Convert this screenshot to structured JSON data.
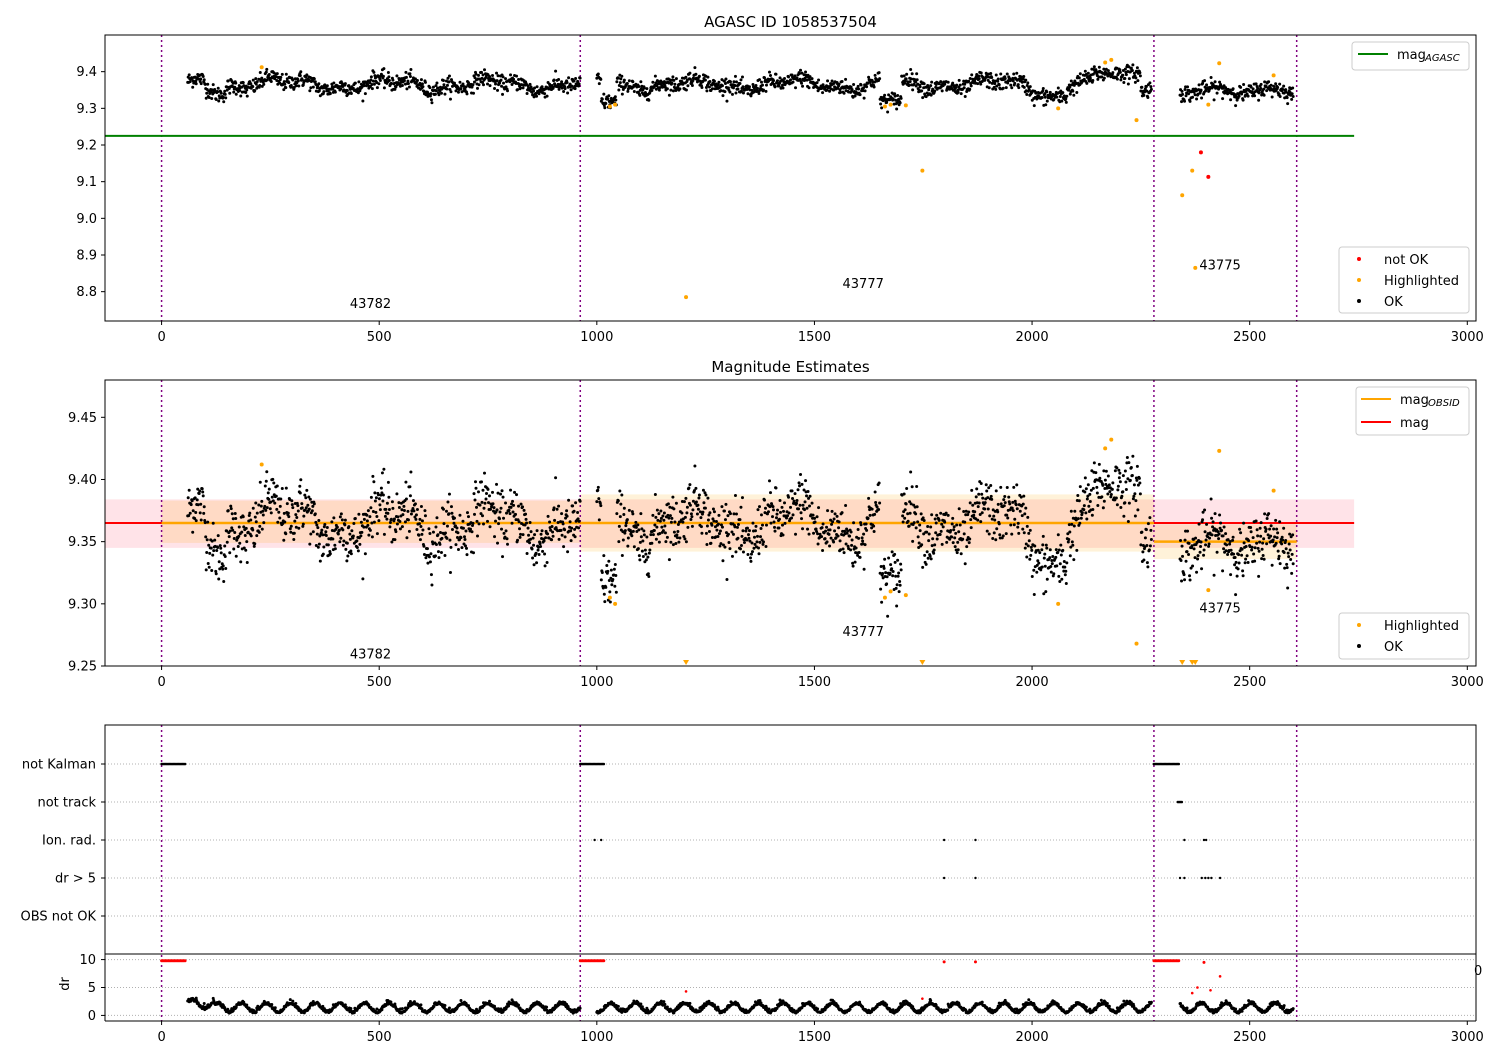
{
  "chart_data": [
    {
      "type": "scatter",
      "title": "AGASC ID 1058537504",
      "xlim": [
        -130,
        3020
      ],
      "ylim": [
        8.72,
        9.5
      ],
      "xticks": [
        0,
        500,
        1000,
        1500,
        2000,
        2500,
        3000
      ],
      "yticks": [
        8.8,
        8.9,
        9.0,
        9.1,
        9.2,
        9.3,
        9.4
      ],
      "ytick_labels": [
        "8.8",
        "8.9",
        "9.0",
        "9.1",
        "9.2",
        "9.3",
        "9.4"
      ],
      "obs_boundaries": [
        0,
        962,
        2280,
        2608
      ],
      "obsids": [
        {
          "label": "43782",
          "x": 480,
          "y": 8.755
        },
        {
          "label": "43777",
          "x": 1612,
          "y": 8.81
        },
        {
          "label": "43775",
          "x": 2432,
          "y": 8.86
        }
      ],
      "lines": [
        {
          "name": "mag",
          "sub": "AGASC",
          "color": "#008000",
          "x": [
            -130,
            2740
          ],
          "y": 9.225
        }
      ],
      "legend_lines": {
        "position": "upper right"
      },
      "legend_points": {
        "position": "lower right",
        "entries": [
          {
            "label": "not OK",
            "color": "#ff0000"
          },
          {
            "label": "Highlighted",
            "color": "#ffa500"
          },
          {
            "label": "OK",
            "color": "#000000"
          }
        ]
      },
      "highlighted": [
        {
          "x": 230,
          "y": 9.412
        },
        {
          "x": 1030,
          "y": 9.305
        },
        {
          "x": 1042,
          "y": 9.31
        },
        {
          "x": 1205,
          "y": 8.785
        },
        {
          "x": 1662,
          "y": 9.305
        },
        {
          "x": 1675,
          "y": 9.31
        },
        {
          "x": 1710,
          "y": 9.308
        },
        {
          "x": 1748,
          "y": 9.13
        },
        {
          "x": 2060,
          "y": 9.3
        },
        {
          "x": 2168,
          "y": 9.425
        },
        {
          "x": 2182,
          "y": 9.432
        },
        {
          "x": 2240,
          "y": 9.268
        },
        {
          "x": 2345,
          "y": 9.063
        },
        {
          "x": 2368,
          "y": 9.13
        },
        {
          "x": 2375,
          "y": 8.865
        },
        {
          "x": 2405,
          "y": 9.31
        },
        {
          "x": 2430,
          "y": 9.423
        },
        {
          "x": 2555,
          "y": 9.39
        }
      ],
      "not_ok": [
        {
          "x": 2388,
          "y": 9.18
        },
        {
          "x": 2405,
          "y": 9.113
        }
      ]
    },
    {
      "type": "scatter",
      "title": "Magnitude Estimates",
      "xlim": [
        -130,
        3020
      ],
      "ylim": [
        9.25,
        9.48
      ],
      "xticks": [
        0,
        500,
        1000,
        1500,
        2000,
        2500,
        3000
      ],
      "yticks": [
        9.25,
        9.3,
        9.35,
        9.4,
        9.45
      ],
      "ytick_labels": [
        "9.25",
        "9.30",
        "9.35",
        "9.40",
        "9.45"
      ],
      "obs_boundaries": [
        0,
        962,
        2280,
        2608
      ],
      "obsids": [
        {
          "label": "43782",
          "x": 480,
          "y": 9.256
        },
        {
          "label": "43777",
          "x": 1612,
          "y": 9.274
        },
        {
          "label": "43775",
          "x": 2432,
          "y": 9.293
        }
      ],
      "global_mag": {
        "value": 9.365,
        "band": [
          9.345,
          9.384
        ],
        "x": [
          -130,
          2740
        ],
        "color": "#ff0000",
        "band_color": "#ffc0cb"
      },
      "obsid_mags": [
        {
          "x": [
            0,
            962
          ],
          "value": 9.365,
          "band": [
            9.349,
            9.383
          ]
        },
        {
          "x": [
            962,
            2280
          ],
          "value": 9.365,
          "band": [
            9.342,
            9.388
          ]
        },
        {
          "x": [
            2280,
            2608
          ],
          "value": 9.35,
          "band": [
            9.336,
            9.364
          ]
        }
      ],
      "legend_lines": {
        "position": "upper right",
        "entries": [
          {
            "label": "mag",
            "sub": "OBSID",
            "color": "#ffa500"
          },
          {
            "label": "mag",
            "sub": "",
            "color": "#ff0000"
          }
        ]
      },
      "legend_points": {
        "position": "lower right",
        "entries": [
          {
            "label": "Highlighted",
            "color": "#ffa500"
          },
          {
            "label": "OK",
            "color": "#000000"
          }
        ]
      },
      "highlighted": [
        {
          "x": 230,
          "y": 9.412
        },
        {
          "x": 1030,
          "y": 9.305
        },
        {
          "x": 1042,
          "y": 9.3
        },
        {
          "x": 1662,
          "y": 9.305
        },
        {
          "x": 1675,
          "y": 9.31
        },
        {
          "x": 1710,
          "y": 9.307
        },
        {
          "x": 2060,
          "y": 9.3
        },
        {
          "x": 2168,
          "y": 9.425
        },
        {
          "x": 2182,
          "y": 9.432
        },
        {
          "x": 2240,
          "y": 9.268
        },
        {
          "x": 2405,
          "y": 9.311
        },
        {
          "x": 2430,
          "y": 9.423
        },
        {
          "x": 2555,
          "y": 9.391
        }
      ],
      "below_range_x": [
        1205,
        1748,
        2345,
        2368,
        2375
      ]
    },
    {
      "type": "scatter",
      "title": "",
      "xlim": [
        -130,
        3020
      ],
      "xticks": [
        0,
        500,
        1000,
        1500,
        2000,
        2500,
        3000
      ],
      "obs_boundaries": [
        0,
        962,
        2280,
        2608
      ],
      "flag_labels": [
        "not Kalman",
        "not track",
        "Ion. rad.",
        "dr > 5",
        "OBS not OK"
      ],
      "flag_ranges": [
        {
          "row": 0,
          "x0": 0,
          "x1": 55
        },
        {
          "row": 0,
          "x0": 962,
          "x1": 1017
        },
        {
          "row": 0,
          "x0": 2280,
          "x1": 2338
        },
        {
          "row": 1,
          "x0": 2335,
          "x1": 2345
        }
      ],
      "flag_points": [
        {
          "row": 2,
          "x": [
            995,
            1010,
            1798,
            1870,
            2350,
            2395,
            2400
          ]
        },
        {
          "row": 3,
          "x": [
            1798,
            1870,
            2340,
            2350,
            2390,
            2398,
            2405,
            2412,
            2432
          ]
        }
      ],
      "dr_ylabel": "dr",
      "dr_yticks": [
        0,
        5,
        10
      ],
      "dr_ylim": [
        -1,
        11
      ],
      "dr_high_x": [
        [
          0,
          55
        ],
        [
          962,
          1017
        ],
        [
          2280,
          2338
        ]
      ],
      "dr_high_points": [
        {
          "x": 1798,
          "y": 9.6
        },
        {
          "x": 1870,
          "y": 9.6
        },
        {
          "x": 2395,
          "y": 9.5
        }
      ],
      "dr_scatter_red": [
        {
          "x": 1205,
          "y": 4.3
        },
        {
          "x": 1748,
          "y": 3.0
        },
        {
          "x": 2368,
          "y": 4.0
        },
        {
          "x": 2380,
          "y": 5.0
        },
        {
          "x": 2410,
          "y": 4.5
        },
        {
          "x": 2432,
          "y": 7.0
        }
      ],
      "stray_tick_label": "0"
    }
  ]
}
